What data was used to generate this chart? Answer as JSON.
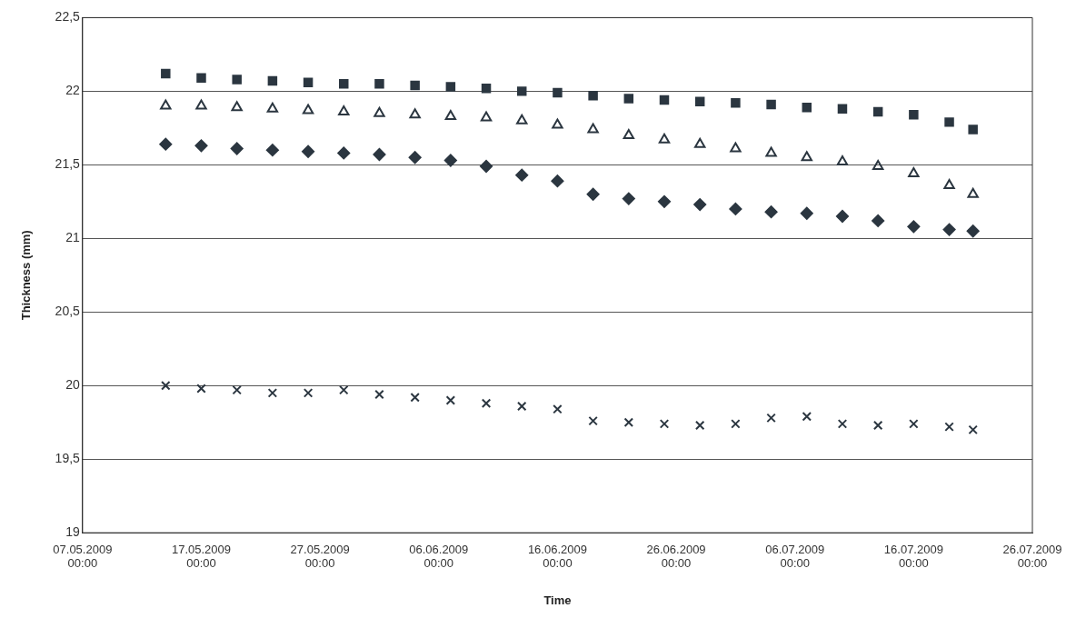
{
  "chart_data": {
    "type": "scatter",
    "xlabel": "Time",
    "ylabel": "Thickness (mm)",
    "x": [
      "2009-05-14",
      "2009-05-17",
      "2009-05-20",
      "2009-05-23",
      "2009-05-26",
      "2009-05-29",
      "2009-06-01",
      "2009-06-04",
      "2009-06-07",
      "2009-06-10",
      "2009-06-13",
      "2009-06-16",
      "2009-06-19",
      "2009-06-22",
      "2009-06-25",
      "2009-06-28",
      "2009-07-01",
      "2009-07-04",
      "2009-07-07",
      "2009-07-10",
      "2009-07-13",
      "2009-07-16",
      "2009-07-19",
      "2009-07-21"
    ],
    "series": [
      {
        "color": "#2b3640",
        "marker": "square",
        "values": [
          22.12,
          22.09,
          22.08,
          22.07,
          22.06,
          22.05,
          22.05,
          22.04,
          22.03,
          22.02,
          22.0,
          21.99,
          21.97,
          21.95,
          21.94,
          21.93,
          21.92,
          21.91,
          21.89,
          21.88,
          21.86,
          21.84,
          21.79,
          21.74
        ]
      },
      {
        "color": "#2b3640",
        "marker": "triangle",
        "values": [
          21.9,
          21.9,
          21.89,
          21.88,
          21.87,
          21.86,
          21.85,
          21.84,
          21.83,
          21.82,
          21.8,
          21.77,
          21.74,
          21.7,
          21.67,
          21.64,
          21.61,
          21.58,
          21.55,
          21.52,
          21.49,
          21.44,
          21.36,
          21.3
        ]
      },
      {
        "color": "#2b3640",
        "marker": "diamond",
        "values": [
          21.64,
          21.63,
          21.61,
          21.6,
          21.59,
          21.58,
          21.57,
          21.55,
          21.53,
          21.49,
          21.43,
          21.39,
          21.3,
          21.27,
          21.25,
          21.23,
          21.2,
          21.18,
          21.17,
          21.15,
          21.12,
          21.08,
          21.06,
          21.05
        ]
      },
      {
        "color": "#2b3640",
        "marker": "cross",
        "values": [
          20.0,
          19.98,
          19.97,
          19.95,
          19.95,
          19.97,
          19.94,
          19.92,
          19.9,
          19.88,
          19.86,
          19.84,
          19.76,
          19.75,
          19.74,
          19.73,
          19.74,
          19.78,
          19.79,
          19.74,
          19.73,
          19.74,
          19.72,
          19.7
        ]
      }
    ],
    "xlim": [
      "2009-05-07",
      "2009-07-26"
    ],
    "xticks": [
      {
        "value": "2009-05-07",
        "label": "07.05.2009 00:00"
      },
      {
        "value": "2009-05-17",
        "label": "17.05.2009 00:00"
      },
      {
        "value": "2009-05-27",
        "label": "27.05.2009 00:00"
      },
      {
        "value": "2009-06-06",
        "label": "06.06.2009 00:00"
      },
      {
        "value": "2009-06-16",
        "label": "16.06.2009 00:00"
      },
      {
        "value": "2009-06-26",
        "label": "26.06.2009 00:00"
      },
      {
        "value": "2009-07-06",
        "label": "06.07.2009 00:00"
      },
      {
        "value": "2009-07-16",
        "label": "16.07.2009 00:00"
      },
      {
        "value": "2009-07-26",
        "label": "26.07.2009 00:00"
      }
    ],
    "ylim": [
      19,
      22.5
    ],
    "yticks": [
      {
        "value": 19,
        "label": "19"
      },
      {
        "value": 19.5,
        "label": "19,5"
      },
      {
        "value": 20,
        "label": "20"
      },
      {
        "value": 20.5,
        "label": "20,5"
      },
      {
        "value": 21,
        "label": "21"
      },
      {
        "value": 21.5,
        "label": "21,5"
      },
      {
        "value": 22,
        "label": "22"
      },
      {
        "value": 22.5,
        "label": "22,5"
      }
    ],
    "grid": "y",
    "legend": false
  }
}
